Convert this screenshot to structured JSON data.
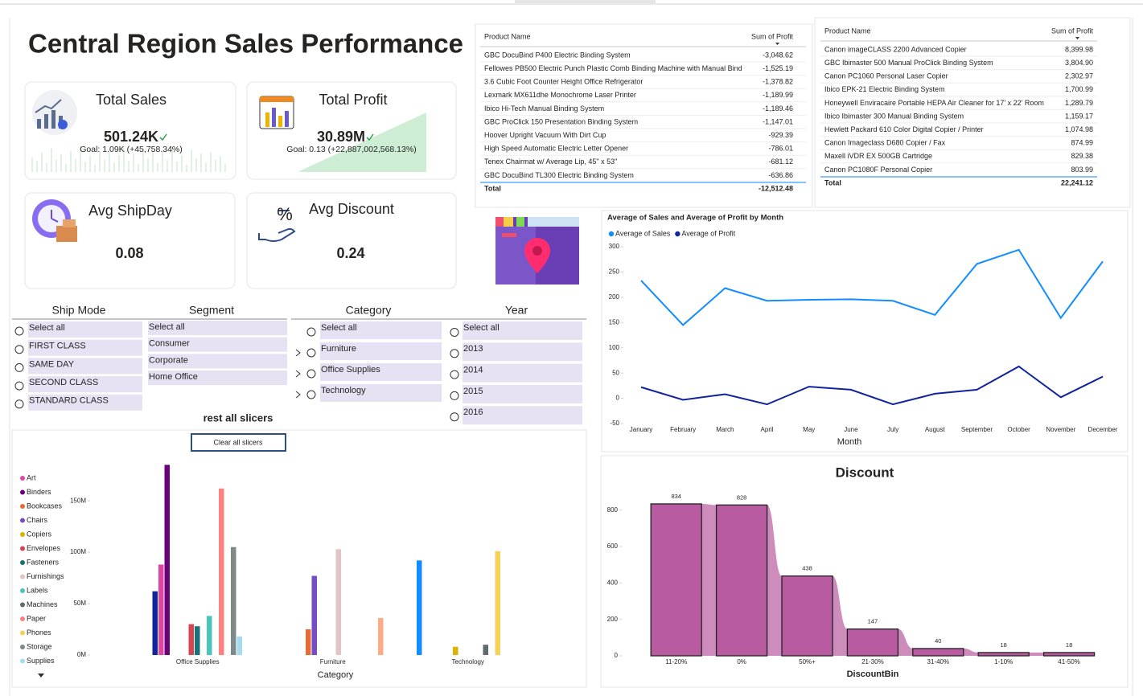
{
  "title": "Central Region Sales Performance",
  "kpis": [
    {
      "title": "Total Sales",
      "value": "501.24K",
      "goal": "Goal: 1.09K (+45,758.34%)"
    },
    {
      "title": "Total Profit",
      "value": "30.89M",
      "goal": "Goal: 0.13 (+22,887,002,568.13%)"
    },
    {
      "title": "Avg ShipDay",
      "value": "0.08"
    },
    {
      "title": "Avg Discount",
      "value": "0.24"
    }
  ],
  "tables": [
    {
      "header": [
        "Product Name",
        "Sum of Profit"
      ],
      "rows": [
        [
          "GBC DocuBind P400 Electric Binding System",
          "-3,048.62"
        ],
        [
          "Fellowes PB500 Electric Punch Plastic Comb Binding Machine with Manual Bind",
          "-1,525.19"
        ],
        [
          "3.6 Cubic Foot Counter Height Office Refrigerator",
          "-1,378.82"
        ],
        [
          "Lexmark MX611dhe Monochrome Laser Printer",
          "-1,189.99"
        ],
        [
          "Ibico Hi-Tech Manual Binding System",
          "-1,189.46"
        ],
        [
          "GBC ProClick 150 Presentation Binding System",
          "-1,147.01"
        ],
        [
          "Hoover Upright Vacuum With Dirt Cup",
          "-929.39"
        ],
        [
          "High Speed Automatic Electric Letter Opener",
          "-786.01"
        ],
        [
          "Tenex Chairmat w/ Average Lip, 45\" x 53\"",
          "-681.12"
        ],
        [
          "GBC DocuBind TL300 Electric Binding System",
          "-636.86"
        ]
      ],
      "total": [
        "Total",
        "-12,512.48"
      ]
    },
    {
      "header": [
        "Product Name",
        "Sum of Profit"
      ],
      "rows": [
        [
          "Canon imageCLASS 2200 Advanced Copier",
          "8,399.98"
        ],
        [
          "GBC Ibimaster 500 Manual ProClick Binding System",
          "3,804.90"
        ],
        [
          "Canon PC1060 Personal Laser Copier",
          "2,302.97"
        ],
        [
          "Ibico EPK-21 Electric Binding System",
          "1,700.99"
        ],
        [
          "Honeywell Enviracaire Portable HEPA Air Cleaner for 17' x 22' Room",
          "1,289.79"
        ],
        [
          "Ibico Ibimaster 300 Manual Binding System",
          "1,159.17"
        ],
        [
          "Hewlett Packard 610 Color Digital Copier / Printer",
          "1,074.98"
        ],
        [
          "Canon Imageclass D680 Copier / Fax",
          "874.99"
        ],
        [
          "Maxell iVDR EX 500GB Cartridge",
          "829.38"
        ],
        [
          "Canon PC1080F Personal Copier",
          "803.99"
        ]
      ],
      "total": [
        "Total",
        "22,241.12"
      ]
    }
  ],
  "slicers": [
    {
      "title": "Ship Mode",
      "items": [
        "Select all",
        "FIRST CLASS",
        "SAME DAY",
        "SECOND CLASS",
        "STANDARD CLASS"
      ]
    },
    {
      "title": "Segment",
      "items": [
        "Select all",
        "Consumer",
        "Corporate",
        "Home Office"
      ]
    },
    {
      "title": "Category",
      "items": [
        "Select all",
        "Furniture",
        "Office Supplies",
        "Technology"
      ]
    },
    {
      "title": "Year",
      "items": [
        "Select all",
        "2013",
        "2014",
        "2015",
        "2016"
      ]
    }
  ],
  "reset_label": "rest all slicers",
  "reset_button": "Clear all slicers",
  "chart_data": [
    {
      "type": "line",
      "title": "Average of Sales and Average of Profit by Month",
      "xlabel": "Month",
      "categories": [
        "January",
        "February",
        "March",
        "April",
        "May",
        "June",
        "July",
        "August",
        "September",
        "October",
        "November",
        "December"
      ],
      "series": [
        {
          "name": "Average of Sales",
          "color": "#118dff",
          "values": [
            233,
            145,
            218,
            193,
            195,
            196,
            193,
            165,
            266,
            294,
            159,
            271
          ]
        },
        {
          "name": "Average of Profit",
          "color": "#12239e",
          "values": [
            22,
            -3,
            8,
            -12,
            23,
            17,
            -12,
            9,
            17,
            63,
            2,
            43
          ]
        }
      ],
      "ylim": [
        -50,
        300
      ],
      "yticks": [
        -50,
        0,
        50,
        100,
        150,
        200,
        250,
        300
      ]
    },
    {
      "type": "bar",
      "xlabel": "Category",
      "categories": [
        "Office Supplies",
        "Furniture",
        "Technology"
      ],
      "series": [
        {
          "name": null,
          "color": "#118dff",
          "values": [
            null,
            null,
            92000000
          ]
        },
        {
          "name": null,
          "color": "#12239e",
          "values": [
            62000000,
            null,
            null
          ]
        },
        {
          "name": "Art",
          "color": "#e044a7",
          "values": [
            88000000,
            null,
            null
          ]
        },
        {
          "name": "Binders",
          "color": "#6b007b",
          "values": [
            185000000,
            null,
            null
          ]
        },
        {
          "name": "Bookcases",
          "color": "#e66c37",
          "values": [
            null,
            25000000,
            null
          ]
        },
        {
          "name": "Chairs",
          "color": "#744ec2",
          "values": [
            null,
            77000000,
            null
          ]
        },
        {
          "name": "Copiers",
          "color": "#d9b300",
          "values": [
            null,
            null,
            8000000
          ]
        },
        {
          "name": "Envelopes",
          "color": "#d64550",
          "values": [
            30000000,
            null,
            null
          ]
        },
        {
          "name": "Fasteners",
          "color": "#197278",
          "values": [
            28000000,
            null,
            null
          ]
        },
        {
          "name": "Furnishings",
          "color": "#e2c4c4",
          "values": [
            null,
            103000000,
            null
          ]
        },
        {
          "name": "Labels",
          "color": "#4ac5bb",
          "values": [
            38000000,
            null,
            null
          ]
        },
        {
          "name": "Machines",
          "color": "#5f6b6d",
          "values": [
            null,
            null,
            10000000
          ]
        },
        {
          "name": "Paper",
          "color": "#fb8281",
          "values": [
            162000000,
            null,
            null
          ]
        },
        {
          "name": "Phones",
          "color": "#f4d25a",
          "values": [
            null,
            null,
            101000000
          ]
        },
        {
          "name": "Storage",
          "color": "#7f898a",
          "values": [
            105000000,
            null,
            null
          ]
        },
        {
          "name": "Supplies",
          "color": "#a4ddee",
          "values": [
            18000000,
            null,
            null
          ]
        },
        {
          "name": null,
          "color": "#fdab89",
          "values": [
            null,
            36000000,
            null
          ]
        }
      ],
      "ylim": [
        0,
        190000000
      ],
      "yticks": [
        {
          "value": 0,
          "label": "0M"
        },
        {
          "value": 50000000,
          "label": "50M"
        },
        {
          "value": 100000000,
          "label": "100M"
        },
        {
          "value": 150000000,
          "label": "150M"
        }
      ]
    },
    {
      "type": "bar",
      "title": "Discount",
      "xlabel": "DiscountBin",
      "categories": [
        "11-20%",
        "0%",
        "50%+",
        "21-30%",
        "31-40%",
        "1-10%",
        "41-50%"
      ],
      "values": [
        834,
        828,
        438,
        147,
        40,
        18,
        18
      ],
      "color": "#b85ba0",
      "ylim": [
        0,
        900
      ],
      "yticks": [
        0,
        200,
        400,
        600,
        800
      ]
    }
  ]
}
